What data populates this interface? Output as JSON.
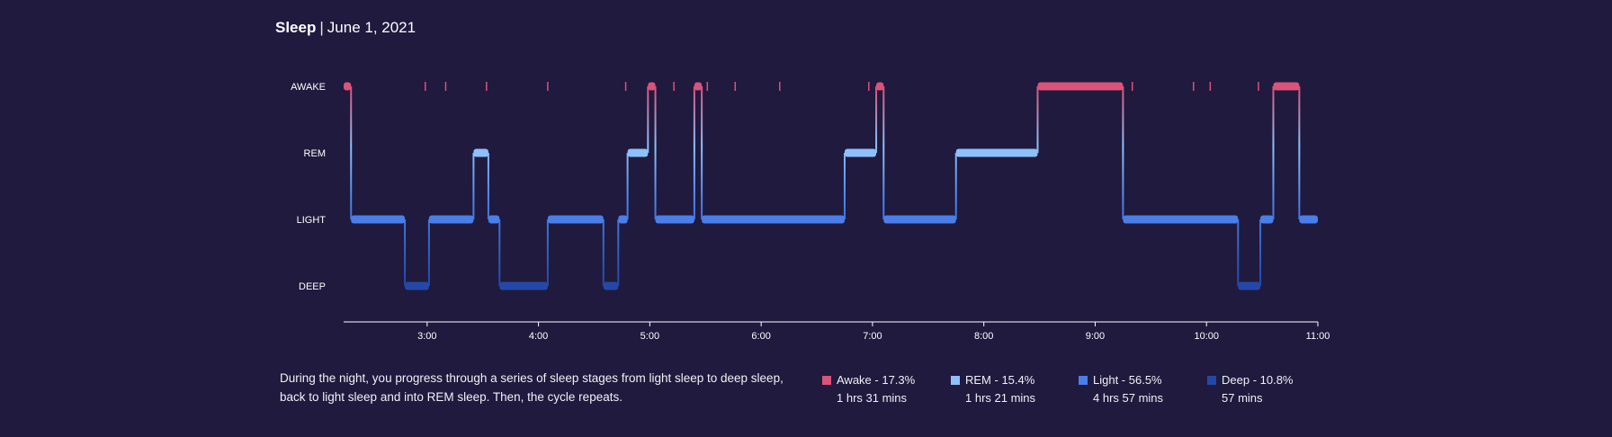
{
  "header": {
    "title": "Sleep",
    "separator": "|",
    "date": "June 1, 2021"
  },
  "colors": {
    "background": "#1f1a3e",
    "awake": "#d9537a",
    "rem": "#8ec0fb",
    "light": "#4a7ee8",
    "deep": "#2448a8",
    "axis": "#ffffff"
  },
  "chart_data": {
    "type": "line",
    "chart_style": "hypnogram",
    "stages": [
      "AWAKE",
      "REM",
      "LIGHT",
      "DEEP"
    ],
    "x_range": [
      "2:15",
      "11:00"
    ],
    "x_ticks": [
      "3:00",
      "4:00",
      "5:00",
      "6:00",
      "7:00",
      "8:00",
      "9:00",
      "10:00",
      "11:00"
    ],
    "grid": false,
    "segments": [
      {
        "start": "2:15",
        "end": "2:19",
        "stage": "AWAKE"
      },
      {
        "start": "2:19",
        "end": "2:48",
        "stage": "LIGHT"
      },
      {
        "start": "2:48",
        "end": "3:01",
        "stage": "DEEP"
      },
      {
        "start": "3:01",
        "end": "3:25",
        "stage": "LIGHT"
      },
      {
        "start": "3:25",
        "end": "3:33",
        "stage": "REM"
      },
      {
        "start": "3:33",
        "end": "3:39",
        "stage": "LIGHT"
      },
      {
        "start": "3:39",
        "end": "4:05",
        "stage": "DEEP"
      },
      {
        "start": "4:05",
        "end": "4:35",
        "stage": "LIGHT"
      },
      {
        "start": "4:35",
        "end": "4:43",
        "stage": "DEEP"
      },
      {
        "start": "4:43",
        "end": "4:48",
        "stage": "LIGHT"
      },
      {
        "start": "4:48",
        "end": "4:59",
        "stage": "REM"
      },
      {
        "start": "4:59",
        "end": "5:03",
        "stage": "AWAKE"
      },
      {
        "start": "5:03",
        "end": "5:24",
        "stage": "LIGHT"
      },
      {
        "start": "5:24",
        "end": "5:28",
        "stage": "AWAKE"
      },
      {
        "start": "5:28",
        "end": "6:45",
        "stage": "LIGHT"
      },
      {
        "start": "6:45",
        "end": "7:02",
        "stage": "REM"
      },
      {
        "start": "7:02",
        "end": "7:06",
        "stage": "AWAKE"
      },
      {
        "start": "7:06",
        "end": "7:45",
        "stage": "LIGHT"
      },
      {
        "start": "7:45",
        "end": "8:29",
        "stage": "REM"
      },
      {
        "start": "8:29",
        "end": "9:15",
        "stage": "AWAKE"
      },
      {
        "start": "9:15",
        "end": "10:17",
        "stage": "LIGHT"
      },
      {
        "start": "10:17",
        "end": "10:29",
        "stage": "DEEP"
      },
      {
        "start": "10:29",
        "end": "10:36",
        "stage": "LIGHT"
      },
      {
        "start": "10:36",
        "end": "10:50",
        "stage": "AWAKE"
      },
      {
        "start": "10:50",
        "end": "11:00",
        "stage": "LIGHT"
      }
    ],
    "brief_awakenings": [
      "2:59",
      "3:10",
      "3:32",
      "4:05",
      "4:47",
      "5:13",
      "5:31",
      "5:46",
      "6:10",
      "6:58",
      "9:20",
      "9:53",
      "10:02",
      "10:28"
    ]
  },
  "description": "During the night, you progress through a series of sleep stages from light sleep to deep sleep, back to light sleep and into REM sleep. Then, the cycle repeats.",
  "legend": [
    {
      "key": "awake",
      "label": "Awake - 17.3%",
      "duration": "1 hrs 31 mins"
    },
    {
      "key": "rem",
      "label": "REM - 15.4%",
      "duration": "1 hrs 21 mins"
    },
    {
      "key": "light",
      "label": "Light - 56.5%",
      "duration": "4 hrs 57 mins"
    },
    {
      "key": "deep",
      "label": "Deep - 10.8%",
      "duration": "57 mins"
    }
  ]
}
